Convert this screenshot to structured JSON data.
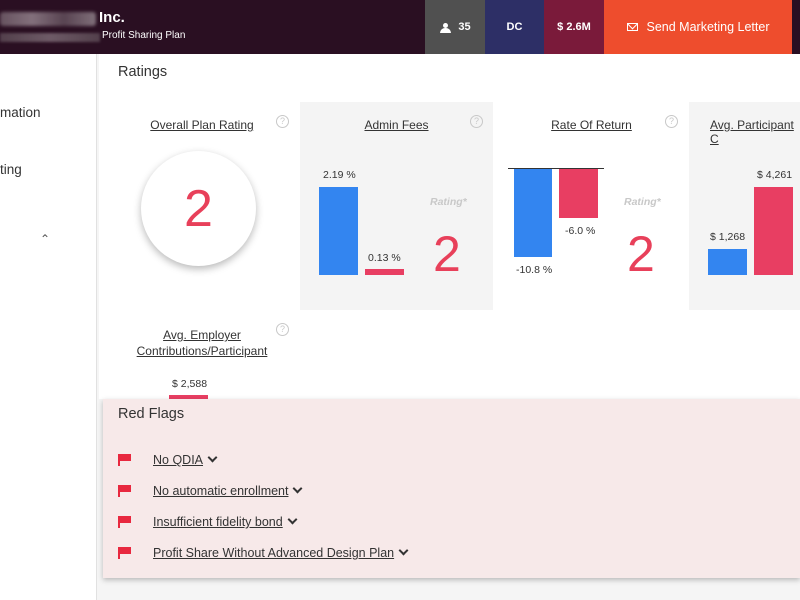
{
  "header": {
    "company_suffix": "Inc.",
    "plan_name": "Profit Sharing Plan",
    "participants": "35",
    "plan_type": "DC",
    "assets": "$ 2.6M",
    "send_button": "Send Marketing Letter"
  },
  "sidebar": {
    "items": [
      {
        "label": "mation"
      },
      {
        "label": "ting"
      }
    ],
    "collapse_icon": "chevron-up-icon"
  },
  "ratings": {
    "title": "Ratings",
    "overall": {
      "label": "Overall Plan Rating",
      "value": "2"
    },
    "admin_fees": {
      "label": "Admin Fees",
      "bar1_label": "2.19 %",
      "bar2_label": "0.13 %",
      "bar1_value": 2.19,
      "bar2_value": 0.13,
      "rating_word": "Rating*",
      "rating": "2"
    },
    "rate_of_return": {
      "label": "Rate Of Return",
      "bar1_label": "-10.8 %",
      "bar2_label": "-6.0 %",
      "bar1_value": -10.8,
      "bar2_value": -6.0,
      "rating_word": "Rating*",
      "rating": "2"
    },
    "avg_participant": {
      "label": "Avg. Participant C",
      "bar1_label": "$ 1,268",
      "bar2_label": "$ 4,261",
      "bar1_value": 1268,
      "bar2_value": 4261
    },
    "avg_employer": {
      "label_line1": "Avg. Employer",
      "label_line2": "Contributions/Participant",
      "bar_label": "$ 2,588",
      "bar_value": 2588
    },
    "help_glyph": "?"
  },
  "red_flags": {
    "title": "Red Flags",
    "items": [
      {
        "label": "No QDIA"
      },
      {
        "label": "No automatic enrollment"
      },
      {
        "label": "Insufficient fidelity bond"
      },
      {
        "label": "Profit Share Without Advanced Design Plan"
      }
    ]
  },
  "colors": {
    "header_bg": "#2a0f22",
    "accent_orange": "#ee4d2d",
    "bar_blue": "#3385f0",
    "bar_red": "#e83e62",
    "flag_red": "#e8283f",
    "flags_bg": "#f7e9e9"
  }
}
